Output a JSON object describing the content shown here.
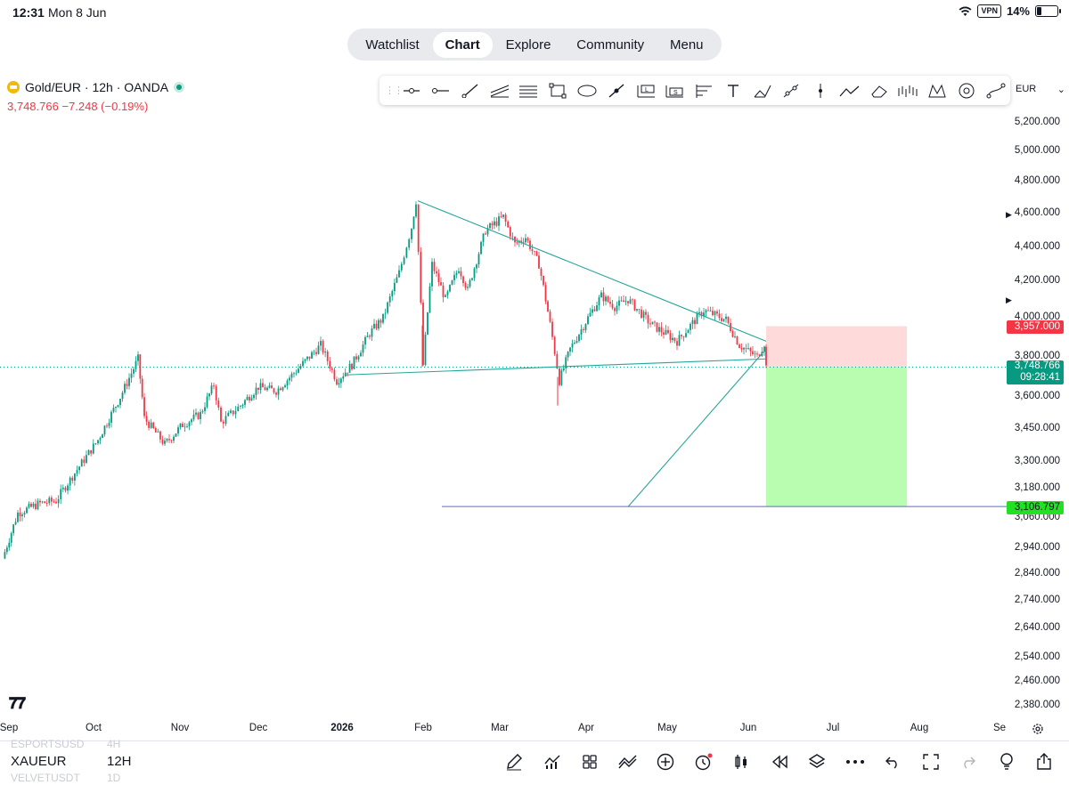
{
  "status_bar": {
    "time": "12:31",
    "date": "Mon 8 Jun",
    "vpn": "VPN",
    "battery": "14%"
  },
  "top_nav": {
    "tabs": [
      "Watchlist",
      "Chart",
      "Explore",
      "Community",
      "Menu"
    ],
    "active": "Chart"
  },
  "symbol_header": {
    "title": "Gold/EUR · 12h · OANDA",
    "price_line": "3,748.766  −7.248 (−0.19%)",
    "accent": "#f23645"
  },
  "drawing_toolbar": {
    "tools": [
      "trend-line-icon",
      "horizontal-ray-icon",
      "ray-icon",
      "parallel-channel-icon",
      "pitchfork-icon",
      "rectangle-icon",
      "ellipse-icon",
      "brush-icon",
      "long-position-icon",
      "short-position-icon",
      "fib-retracement-icon",
      "text-icon",
      "highlighter-icon",
      "path-icon",
      "vertical-line-icon",
      "polyline-icon",
      "eraser-icon",
      "forecast-icon",
      "xabcd-pattern-icon",
      "projection-icon",
      "curve-icon"
    ],
    "currency": "EUR"
  },
  "price_axis": {
    "labels": [
      "5,200.000",
      "5,000.000",
      "4,800.000",
      "4,600.000",
      "4,400.000",
      "4,200.000",
      "4,000.000",
      "3,800.000",
      "3,600.000",
      "3,450.000",
      "3,300.000",
      "3,180.000",
      "3,060.000",
      "2,940.000",
      "2,840.000",
      "2,740.000",
      "2,640.000",
      "2,540.000",
      "2,460.000",
      "2,380.000"
    ],
    "tags": {
      "stop": {
        "value": "3,957.000",
        "color": "#f23645"
      },
      "current": {
        "value": "3,748.766",
        "countdown": "09:28:41",
        "color": "#089981"
      },
      "target": {
        "value": "3,106.797",
        "color": "#22e022"
      }
    }
  },
  "time_axis": {
    "labels": [
      "Sep",
      "Oct",
      "Nov",
      "Dec",
      "2026",
      "Feb",
      "Mar",
      "Apr",
      "May",
      "Jun",
      "Jul",
      "Aug",
      "Se"
    ]
  },
  "chart_data": {
    "type": "candlestick",
    "symbol": "Gold/EUR",
    "interval": "12h",
    "source": "OANDA",
    "x_range": [
      "Sep",
      "Se"
    ],
    "ylim": [
      2340,
      5300
    ],
    "log_scale": true,
    "series": [
      {
        "name": "Gold/EUR",
        "anchors": [
          [
            "Sep",
            2900
          ],
          [
            "Sep",
            3080
          ],
          [
            "Sep",
            3120
          ],
          [
            "Oct",
            3130
          ],
          [
            "Oct",
            3400
          ],
          [
            "Oct",
            3600
          ],
          [
            "Oct",
            3790
          ],
          [
            "Oct",
            3500
          ],
          [
            "Nov",
            3380
          ],
          [
            "Nov",
            3470
          ],
          [
            "Nov",
            3520
          ],
          [
            "Nov",
            3660
          ],
          [
            "Nov",
            3480
          ],
          [
            "Dec",
            3560
          ],
          [
            "Dec",
            3650
          ],
          [
            "Dec",
            3630
          ],
          [
            "Dec",
            3720
          ],
          [
            "Dec",
            3860
          ],
          [
            "Dec",
            3680
          ],
          [
            "2026",
            3760
          ],
          [
            "2026",
            3920
          ],
          [
            "2026",
            4000
          ],
          [
            "2026",
            4250
          ],
          [
            "2026",
            4520
          ],
          [
            "Feb",
            4680
          ],
          [
            "Feb",
            3760
          ],
          [
            "Feb",
            4300
          ],
          [
            "Feb",
            4100
          ],
          [
            "Feb",
            4280
          ],
          [
            "Feb",
            4150
          ],
          [
            "Mar",
            4500
          ],
          [
            "Mar",
            4580
          ],
          [
            "Mar",
            4420
          ],
          [
            "Mar",
            4460
          ],
          [
            "Mar",
            4300
          ],
          [
            "Mar",
            3900
          ],
          [
            "Mar",
            3680
          ],
          [
            "Apr",
            3840
          ],
          [
            "Apr",
            4000
          ],
          [
            "Apr",
            4120
          ],
          [
            "Apr",
            4060
          ],
          [
            "Apr",
            4100
          ],
          [
            "Apr",
            3970
          ],
          [
            "May",
            3880
          ],
          [
            "May",
            4040
          ],
          [
            "May",
            3990
          ],
          [
            "May",
            3860
          ],
          [
            "May",
            3800
          ],
          [
            "Jun",
            3870
          ],
          [
            "Jun",
            3750
          ]
        ]
      }
    ],
    "annotations": {
      "trendline_upper": {
        "from": [
          "Feb",
          4680
        ],
        "to": [
          "Jun",
          3880
        ]
      },
      "trendline_lower": {
        "from": [
          "2026",
          3710
        ],
        "to": [
          "Jun",
          3790
        ]
      },
      "diagonal": {
        "from": [
          "May",
          3106
        ],
        "to": [
          "Jun",
          3830
        ]
      },
      "horizontal_support": 3106.797,
      "short_position": {
        "entry": 3748.766,
        "stop": 3957.0,
        "target": 3106.797,
        "stop_fill": "#ffdada",
        "target_fill": "#b8fdb0"
      }
    }
  },
  "bottom_bar": {
    "ghost_top": {
      "symbol": "ESPORTSUSD",
      "interval": "4H"
    },
    "symbol": "XAUEUR",
    "interval": "12H",
    "ghost_bottom": {
      "symbol": "VELVETUSDT",
      "interval": "1D"
    },
    "tools": [
      "draw-pen-icon",
      "indicators-icon",
      "templates-icon",
      "compare-icon",
      "add-icon",
      "alert-icon",
      "candle-type-icon",
      "replay-icon",
      "layers-icon",
      "more-icon",
      "undo-icon",
      "fullscreen-icon",
      "redo-icon",
      "ideas-icon",
      "share-icon"
    ]
  }
}
